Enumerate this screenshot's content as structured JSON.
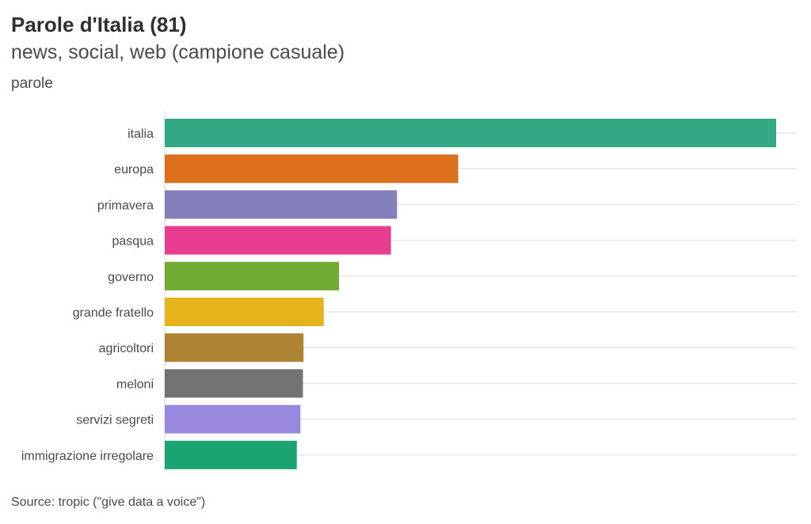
{
  "chart_data": {
    "type": "bar",
    "orientation": "horizontal",
    "title": "Parole d'Italia (81)",
    "subtitle": "news, social, web (campione casuale)",
    "ylabel": "parole",
    "xlabel": "",
    "caption": "Source: tropic (\"give data a voice\")",
    "categories": [
      "italia",
      "europa",
      "primavera",
      "pasqua",
      "governo",
      "grande fratello",
      "agricoltori",
      "meloni",
      "servizi segreti",
      "immigrazione irregolare"
    ],
    "values": [
      100,
      48,
      38,
      37,
      28.5,
      26,
      22.7,
      22.6,
      22.2,
      21.6
    ],
    "colors": [
      "#33a884",
      "#dd6f1c",
      "#8380bb",
      "#e83e92",
      "#70ab34",
      "#e5b41c",
      "#ae8434",
      "#737373",
      "#9a88e0",
      "#1ba472"
    ],
    "xlim": [
      0,
      100
    ],
    "grid": "horizontal",
    "legend": "none"
  }
}
